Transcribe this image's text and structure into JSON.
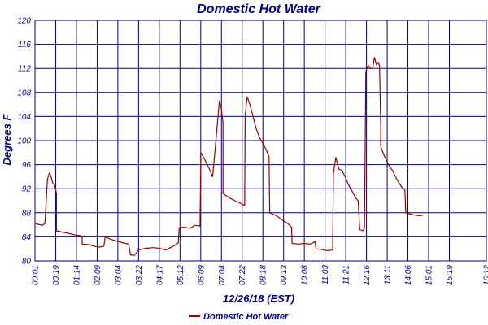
{
  "chart_data": {
    "type": "line",
    "title": "Domestic Hot Water",
    "xlabel": "12/26/18 (EST)",
    "ylabel": "Degrees F",
    "ylim": [
      80,
      120
    ],
    "yticks": [
      80,
      84,
      88,
      92,
      96,
      100,
      104,
      108,
      112,
      116,
      120
    ],
    "xlim": [
      0,
      1
    ],
    "xticks": [
      {
        "label": "00:01",
        "x": 0.0
      },
      {
        "label": "00:19",
        "x": 0.0459
      },
      {
        "label": "01:14",
        "x": 0.0918
      },
      {
        "label": "02:09",
        "x": 0.1377
      },
      {
        "label": "03:04",
        "x": 0.1836
      },
      {
        "label": "03:22",
        "x": 0.2295
      },
      {
        "label": "04:17",
        "x": 0.2754
      },
      {
        "label": "05:12",
        "x": 0.3213
      },
      {
        "label": "06:09",
        "x": 0.3672
      },
      {
        "label": "07:04",
        "x": 0.4131
      },
      {
        "label": "07:22",
        "x": 0.459
      },
      {
        "label": "08:18",
        "x": 0.5049
      },
      {
        "label": "09:13",
        "x": 0.5508
      },
      {
        "label": "10:08",
        "x": 0.5967
      },
      {
        "label": "11:03",
        "x": 0.6426
      },
      {
        "label": "11:21",
        "x": 0.6885
      },
      {
        "label": "12:16",
        "x": 0.7344
      },
      {
        "label": "13:11",
        "x": 0.7803
      },
      {
        "label": "14:06",
        "x": 0.8262
      },
      {
        "label": "15:01",
        "x": 0.8721
      },
      {
        "label": "15:19",
        "x": 0.918
      },
      {
        "label": "16:12",
        "x": 1.0
      }
    ],
    "grid": true,
    "legend": "bottom-left",
    "series": [
      {
        "name": "Domestic Hot Water",
        "color": "#990000",
        "points": [
          [
            0.0,
            86.3
          ],
          [
            0.0055,
            86.1
          ],
          [
            0.011,
            86.0
          ],
          [
            0.016,
            85.9
          ],
          [
            0.022,
            86.2
          ],
          [
            0.0275,
            93.5
          ],
          [
            0.0315,
            94.6
          ],
          [
            0.035,
            94.2
          ],
          [
            0.039,
            93.0
          ],
          [
            0.044,
            92.5
          ],
          [
            0.0475,
            91.2
          ],
          [
            0.0475,
            85.0
          ],
          [
            0.06,
            84.8
          ],
          [
            0.073,
            84.6
          ],
          [
            0.09,
            84.3
          ],
          [
            0.1,
            84.2
          ],
          [
            0.1045,
            83.9
          ],
          [
            0.1045,
            82.8
          ],
          [
            0.12,
            82.7
          ],
          [
            0.133,
            82.4
          ],
          [
            0.143,
            82.3
          ],
          [
            0.1525,
            82.4
          ],
          [
            0.1555,
            84.0
          ],
          [
            0.168,
            83.6
          ],
          [
            0.185,
            83.2
          ],
          [
            0.2,
            82.9
          ],
          [
            0.2075,
            82.8
          ],
          [
            0.2115,
            81.0
          ],
          [
            0.22,
            80.9
          ],
          [
            0.2295,
            81.8
          ],
          [
            0.245,
            82.1
          ],
          [
            0.262,
            82.2
          ],
          [
            0.276,
            82.1
          ],
          [
            0.29,
            81.8
          ],
          [
            0.3,
            82.2
          ],
          [
            0.31,
            82.6
          ],
          [
            0.3175,
            83.0
          ],
          [
            0.3195,
            85.5
          ],
          [
            0.331,
            85.6
          ],
          [
            0.343,
            85.4
          ],
          [
            0.354,
            85.9
          ],
          [
            0.3655,
            85.8
          ],
          [
            0.3675,
            98.0
          ],
          [
            0.375,
            97.0
          ],
          [
            0.385,
            95.5
          ],
          [
            0.3935,
            94.0
          ],
          [
            0.402,
            101.0
          ],
          [
            0.4085,
            106.6
          ],
          [
            0.4125,
            105.5
          ],
          [
            0.4165,
            103.0
          ],
          [
            0.4165,
            91.2
          ],
          [
            0.43,
            90.5
          ],
          [
            0.443,
            90.0
          ],
          [
            0.455,
            89.6
          ],
          [
            0.4645,
            89.2
          ],
          [
            0.4655,
            104.0
          ],
          [
            0.47,
            107.3
          ],
          [
            0.476,
            106.0
          ],
          [
            0.483,
            104.0
          ],
          [
            0.49,
            102.0
          ],
          [
            0.4975,
            100.5
          ],
          [
            0.505,
            99.5
          ],
          [
            0.512,
            98.5
          ],
          [
            0.5185,
            97.3
          ],
          [
            0.52,
            88.0
          ],
          [
            0.535,
            87.5
          ],
          [
            0.548,
            86.8
          ],
          [
            0.56,
            86.2
          ],
          [
            0.5685,
            85.6
          ],
          [
            0.5695,
            82.9
          ],
          [
            0.583,
            82.8
          ],
          [
            0.596,
            82.9
          ],
          [
            0.61,
            82.8
          ],
          [
            0.6205,
            83.2
          ],
          [
            0.6225,
            82.0
          ],
          [
            0.635,
            81.9
          ],
          [
            0.647,
            81.7
          ],
          [
            0.6595,
            81.8
          ],
          [
            0.661,
            94.5
          ],
          [
            0.6665,
            97.2
          ],
          [
            0.673,
            95.3
          ],
          [
            0.68,
            95.0
          ],
          [
            0.687,
            94.0
          ],
          [
            0.695,
            92.6
          ],
          [
            0.703,
            91.5
          ],
          [
            0.711,
            90.4
          ],
          [
            0.716,
            90.0
          ],
          [
            0.7195,
            85.2
          ],
          [
            0.7265,
            85.0
          ],
          [
            0.73,
            85.4
          ],
          [
            0.733,
            111.5
          ],
          [
            0.738,
            112.5
          ],
          [
            0.743,
            112.0
          ],
          [
            0.748,
            112.0
          ],
          [
            0.752,
            113.8
          ],
          [
            0.7565,
            112.6
          ],
          [
            0.761,
            113.0
          ],
          [
            0.7635,
            112.3
          ],
          [
            0.766,
            102.5
          ],
          [
            0.766,
            99.0
          ],
          [
            0.7735,
            97.5
          ],
          [
            0.783,
            96.0
          ],
          [
            0.792,
            95.0
          ],
          [
            0.802,
            93.5
          ],
          [
            0.812,
            92.3
          ],
          [
            0.8195,
            91.8
          ],
          [
            0.8215,
            88.0
          ],
          [
            0.835,
            87.7
          ],
          [
            0.8505,
            87.5
          ],
          [
            0.86,
            87.6
          ]
        ]
      }
    ]
  }
}
